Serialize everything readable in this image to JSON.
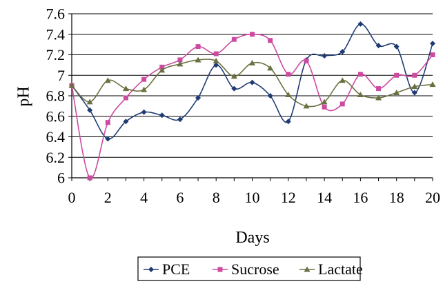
{
  "chart_data": {
    "type": "line",
    "title": "",
    "xlabel": "Days",
    "ylabel": "pH",
    "xlim": [
      0,
      20
    ],
    "ylim": [
      6,
      7.6
    ],
    "xticks": [
      0,
      2,
      4,
      6,
      8,
      10,
      12,
      14,
      16,
      18,
      20
    ],
    "yticks": [
      6,
      6.2,
      6.4,
      6.6,
      6.8,
      7,
      7.2,
      7.4,
      7.6
    ],
    "ytick_labels": [
      "6",
      "6.2",
      "6.4",
      "6.6",
      "6.8",
      "7",
      "7.2",
      "7.4",
      "7.6"
    ],
    "grid": "horizontal",
    "legend_position": "bottom",
    "x": [
      0,
      1,
      2,
      3,
      4,
      5,
      6,
      7,
      8,
      9,
      10,
      11,
      12,
      13,
      14,
      15,
      16,
      17,
      18,
      19,
      20
    ],
    "series": [
      {
        "name": "PCE",
        "color": "#1f3b73",
        "marker": "diamond",
        "values": [
          6.9,
          6.66,
          6.38,
          6.55,
          6.64,
          6.61,
          6.57,
          6.78,
          7.1,
          6.87,
          6.93,
          6.8,
          6.55,
          7.15,
          7.19,
          7.23,
          7.5,
          7.29,
          7.28,
          6.83,
          7.31
        ]
      },
      {
        "name": "Sucrose",
        "color": "#cc4aa0",
        "marker": "square",
        "values": [
          6.9,
          6.0,
          6.54,
          6.78,
          6.96,
          7.08,
          7.15,
          7.28,
          7.21,
          7.35,
          7.4,
          7.34,
          7.01,
          7.14,
          6.69,
          6.72,
          7.01,
          6.87,
          7.0,
          7.0,
          7.2
        ]
      },
      {
        "name": "Lactate",
        "color": "#6b7040",
        "marker": "triangle",
        "values": [
          6.9,
          6.74,
          6.95,
          6.87,
          6.86,
          7.05,
          7.11,
          7.15,
          7.14,
          6.99,
          7.12,
          7.07,
          6.81,
          6.7,
          6.74,
          6.95,
          6.81,
          6.78,
          6.83,
          6.89,
          6.91
        ]
      }
    ]
  }
}
